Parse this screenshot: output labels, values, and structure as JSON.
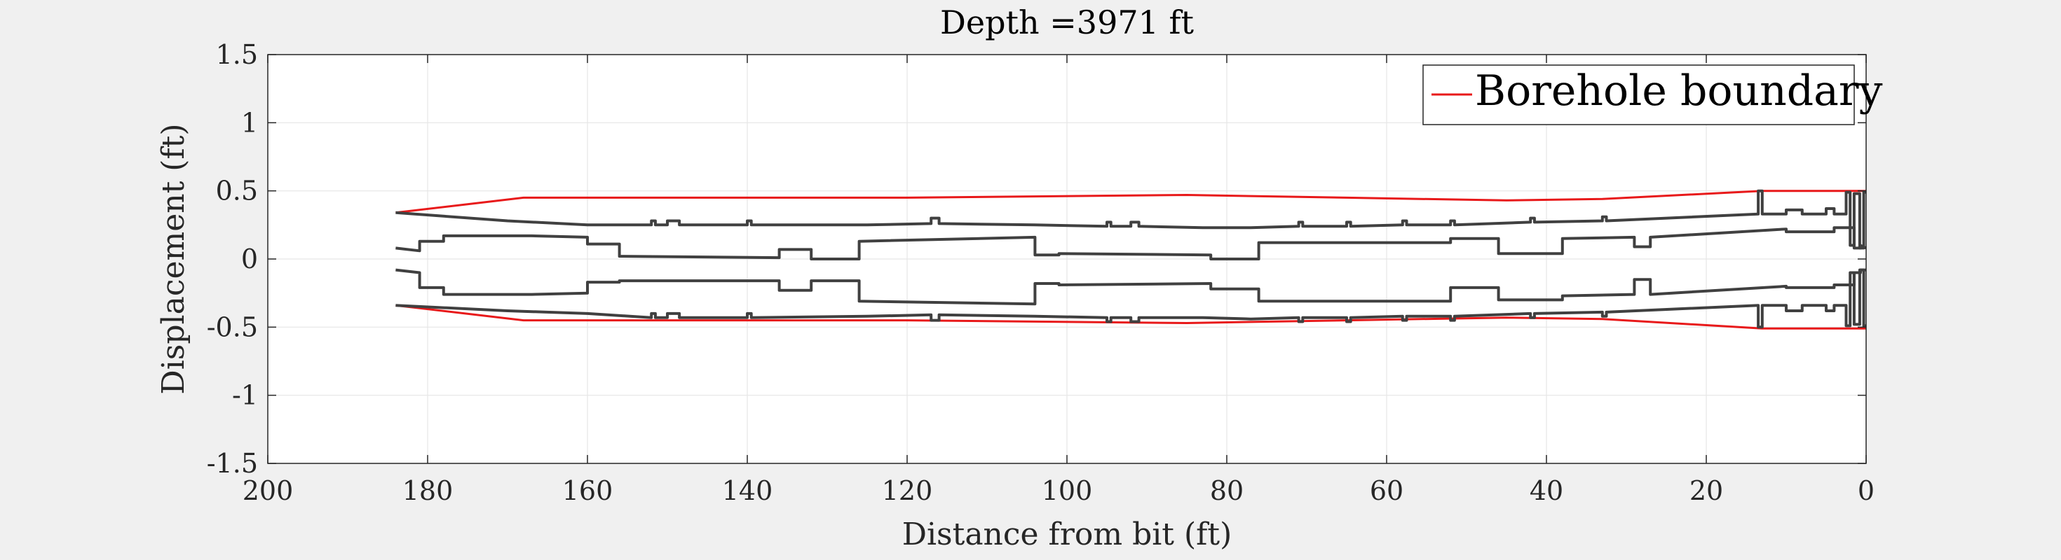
{
  "chart_data": {
    "type": "line",
    "title": "Depth =3971 ft",
    "xlabel": "Distance from bit (ft)",
    "ylabel": "Displacement (ft)",
    "xlim": [
      200,
      0
    ],
    "ylim": [
      -1.5,
      1.5
    ],
    "x_reversed": true,
    "x_ticks": [
      200,
      180,
      160,
      140,
      120,
      100,
      80,
      60,
      40,
      20,
      0
    ],
    "y_ticks": [
      1.5,
      1,
      0.5,
      0,
      -0.5,
      -1,
      -1.5
    ],
    "x_tick_labels": [
      "200",
      "180",
      "160",
      "140",
      "120",
      "100",
      "80",
      "60",
      "40",
      "20",
      "0"
    ],
    "y_tick_labels": [
      "1.5",
      "1",
      "0.5",
      "0",
      "-0.5",
      "-1",
      "-1.5"
    ],
    "grid": true,
    "legend": {
      "position": "top-right",
      "entries": [
        "Borehole boundary"
      ]
    },
    "colors": {
      "boundary": "#e8191a",
      "string": "#404040",
      "grid": "#e6e6e6",
      "axis": "#262626",
      "figure_bg": "#f0f0f0",
      "axes_bg": "#ffffff"
    },
    "series": [
      {
        "name": "Borehole boundary",
        "color": "#e8191a",
        "segments": [
          {
            "x": [
              184,
              168,
              120,
              85,
              65,
              45,
              33,
              13,
              0
            ],
            "y": [
              0.34,
              0.45,
              0.45,
              0.47,
              0.45,
              0.43,
              0.44,
              0.5,
              0.5
            ]
          },
          {
            "x": [
              184,
              168,
              120,
              85,
              65,
              45,
              33,
              13,
              0
            ],
            "y": [
              -0.34,
              -0.45,
              -0.45,
              -0.47,
              -0.45,
              -0.43,
              -0.44,
              -0.51,
              -0.51
            ]
          }
        ]
      },
      {
        "color": "#404040",
        "segments": [
          {
            "x": [
              184,
              170,
              160,
              152,
              152,
              151.5,
              151.5,
              150,
              150,
              148.5,
              148.5,
              140,
              140,
              139.5,
              139.5,
              125,
              117,
              117,
              116,
              116,
              104,
              95,
              95,
              94.5,
              94.5,
              92,
              92,
              91,
              91,
              83,
              77,
              71,
              71,
              70.5,
              70.5,
              65,
              65,
              64.5,
              64.5,
              58,
              58,
              57.5,
              57.5,
              52,
              52,
              51.5,
              51.5,
              42,
              42,
              41.5,
              41.5,
              33,
              33,
              32.5,
              32.5,
              13.5,
              13.5,
              13,
              13,
              10,
              10,
              8,
              8,
              5,
              5,
              4,
              4,
              2.5,
              2.5,
              2,
              2,
              1.5,
              1.5,
              0.8,
              0.8,
              0.3,
              0.3,
              0
            ],
            "y": [
              0.34,
              0.28,
              0.25,
              0.25,
              0.28,
              0.28,
              0.25,
              0.25,
              0.28,
              0.28,
              0.25,
              0.25,
              0.28,
              0.28,
              0.25,
              0.25,
              0.26,
              0.3,
              0.3,
              0.26,
              0.25,
              0.24,
              0.27,
              0.27,
              0.24,
              0.24,
              0.27,
              0.27,
              0.24,
              0.23,
              0.23,
              0.24,
              0.27,
              0.27,
              0.24,
              0.24,
              0.27,
              0.27,
              0.24,
              0.25,
              0.28,
              0.28,
              0.25,
              0.25,
              0.28,
              0.28,
              0.25,
              0.27,
              0.3,
              0.3,
              0.27,
              0.28,
              0.31,
              0.31,
              0.28,
              0.33,
              0.5,
              0.5,
              0.33,
              0.33,
              0.36,
              0.36,
              0.33,
              0.33,
              0.37,
              0.37,
              0.33,
              0.33,
              0.49,
              0.49,
              0.1,
              0.1,
              0.48,
              0.48,
              0.08,
              0.08,
              0.49,
              0.49
            ]
          },
          {
            "x": [
              184,
              181,
              181,
              178,
              178,
              167,
              160,
              160,
              156,
              156,
              136,
              136,
              132,
              132,
              126,
              126,
              104,
              104,
              101,
              101,
              82,
              82,
              76,
              76,
              70,
              52,
              52,
              46,
              46,
              38,
              38,
              29,
              29,
              27,
              27,
              10,
              10,
              4,
              4,
              1.5,
              1.5,
              0.7,
              0.7,
              0
            ],
            "y": [
              0.08,
              0.06,
              0.13,
              0.13,
              0.17,
              0.17,
              0.16,
              0.11,
              0.11,
              0.02,
              0.01,
              0.07,
              0.07,
              0.0,
              0.0,
              0.13,
              0.16,
              0.03,
              0.03,
              0.04,
              0.03,
              0.0,
              0.0,
              0.12,
              0.12,
              0.12,
              0.15,
              0.15,
              0.04,
              0.04,
              0.15,
              0.16,
              0.09,
              0.09,
              0.16,
              0.22,
              0.2,
              0.2,
              0.23,
              0.23,
              0.08,
              0.08,
              0.1,
              0.08
            ]
          },
          {
            "x": [
              184,
              181,
              181,
              178,
              178,
              167,
              160,
              160,
              156,
              156,
              136,
              136,
              132,
              132,
              126,
              126,
              104,
              104,
              101,
              101,
              82,
              82,
              76,
              76,
              70,
              52,
              52,
              46,
              46,
              38,
              38,
              29,
              29,
              27,
              27,
              10,
              10,
              4,
              4,
              1.5,
              1.5,
              0.7,
              0.7,
              0
            ],
            "y": [
              -0.08,
              -0.1,
              -0.21,
              -0.21,
              -0.26,
              -0.26,
              -0.25,
              -0.17,
              -0.17,
              -0.16,
              -0.16,
              -0.23,
              -0.23,
              -0.16,
              -0.16,
              -0.31,
              -0.33,
              -0.18,
              -0.18,
              -0.19,
              -0.18,
              -0.22,
              -0.22,
              -0.31,
              -0.31,
              -0.31,
              -0.21,
              -0.21,
              -0.3,
              -0.3,
              -0.27,
              -0.26,
              -0.15,
              -0.15,
              -0.26,
              -0.2,
              -0.21,
              -0.21,
              -0.19,
              -0.19,
              -0.1,
              -0.1,
              -0.08,
              -0.08
            ]
          },
          {
            "x": [
              184,
              170,
              160,
              152,
              152,
              151.5,
              151.5,
              150,
              150,
              148.5,
              148.5,
              140,
              140,
              139.5,
              139.5,
              125,
              117,
              117,
              116,
              116,
              104,
              95,
              95,
              94.5,
              94.5,
              92,
              92,
              91,
              91,
              83,
              77,
              71,
              71,
              70.5,
              70.5,
              65,
              65,
              64.5,
              64.5,
              58,
              58,
              57.5,
              57.5,
              52,
              52,
              51.5,
              51.5,
              42,
              42,
              41.5,
              41.5,
              33,
              33,
              32.5,
              32.5,
              13.5,
              13.5,
              13,
              13,
              10,
              10,
              8,
              8,
              5,
              5,
              4,
              4,
              2.5,
              2.5,
              2,
              2,
              1.5,
              1.5,
              0.8,
              0.8,
              0.3,
              0.3,
              0
            ],
            "y": [
              -0.34,
              -0.38,
              -0.4,
              -0.43,
              -0.4,
              -0.4,
              -0.43,
              -0.43,
              -0.4,
              -0.4,
              -0.43,
              -0.43,
              -0.4,
              -0.4,
              -0.43,
              -0.42,
              -0.41,
              -0.45,
              -0.45,
              -0.41,
              -0.42,
              -0.43,
              -0.46,
              -0.46,
              -0.43,
              -0.43,
              -0.46,
              -0.46,
              -0.43,
              -0.43,
              -0.44,
              -0.43,
              -0.46,
              -0.46,
              -0.43,
              -0.43,
              -0.46,
              -0.46,
              -0.43,
              -0.42,
              -0.45,
              -0.45,
              -0.42,
              -0.42,
              -0.45,
              -0.45,
              -0.42,
              -0.4,
              -0.43,
              -0.43,
              -0.4,
              -0.39,
              -0.42,
              -0.42,
              -0.39,
              -0.34,
              -0.5,
              -0.5,
              -0.34,
              -0.34,
              -0.38,
              -0.38,
              -0.34,
              -0.34,
              -0.38,
              -0.38,
              -0.34,
              -0.34,
              -0.49,
              -0.49,
              -0.1,
              -0.1,
              -0.48,
              -0.48,
              -0.08,
              -0.08,
              -0.49,
              -0.49
            ]
          }
        ]
      }
    ]
  }
}
